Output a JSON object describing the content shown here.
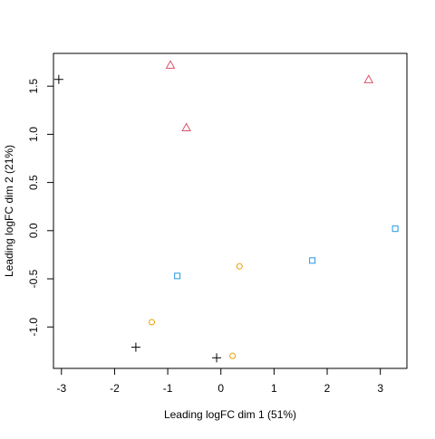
{
  "chart_data": {
    "type": "scatter",
    "xlabel": "Leading logFC dim 1 (51%)",
    "ylabel": "Leading logFC dim 2 (21%)",
    "xlim": [
      -3.15,
      3.5
    ],
    "ylim": [
      -1.43,
      1.84
    ],
    "x_ticks": [
      -3,
      -2,
      -1,
      0,
      1,
      2,
      3
    ],
    "y_ticks": [
      -1.0,
      -0.5,
      0.0,
      0.5,
      1.0,
      1.5
    ],
    "x_tick_labels": [
      "-3",
      "-2",
      "-1",
      "0",
      "1",
      "2",
      "3"
    ],
    "y_tick_labels": [
      "-1.0",
      "-0.5",
      "0.0",
      "0.5",
      "1.0",
      "1.5"
    ],
    "grid": false,
    "series": [
      {
        "marker": "plus",
        "color": "#000000",
        "points": [
          {
            "x": -3.05,
            "y": 1.57
          },
          {
            "x": -1.6,
            "y": -1.21
          },
          {
            "x": -0.08,
            "y": -1.32
          }
        ]
      },
      {
        "marker": "triangle",
        "color": "#DF536B",
        "points": [
          {
            "x": -0.95,
            "y": 1.72
          },
          {
            "x": -0.65,
            "y": 1.07
          },
          {
            "x": 2.78,
            "y": 1.57
          }
        ]
      },
      {
        "marker": "circle",
        "color": "#E69F00",
        "points": [
          {
            "x": -1.3,
            "y": -0.95
          },
          {
            "x": 0.35,
            "y": -0.37
          },
          {
            "x": 0.22,
            "y": -1.3
          }
        ]
      },
      {
        "marker": "square",
        "color": "#2297E6",
        "points": [
          {
            "x": -0.82,
            "y": -0.47
          },
          {
            "x": 1.72,
            "y": -0.31
          },
          {
            "x": 3.28,
            "y": 0.02
          }
        ]
      }
    ]
  }
}
